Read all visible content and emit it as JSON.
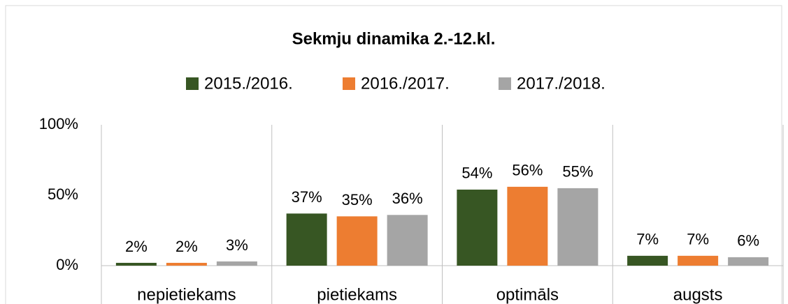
{
  "chart_data": {
    "type": "bar",
    "title": "Sekmju dinamika 2.-12.kl.",
    "categories": [
      "nepietiekams",
      "pietiekams",
      "optimāls",
      "augsts"
    ],
    "series": [
      {
        "name": "2015./2016.",
        "color": "#375623",
        "values": [
          2,
          37,
          54,
          7
        ],
        "value_labels": [
          "2%",
          "37%",
          "54%",
          "7%"
        ]
      },
      {
        "name": "2016./2017.",
        "color": "#ed7d31",
        "values": [
          2,
          35,
          56,
          7
        ],
        "value_labels": [
          "2%",
          "35%",
          "56%",
          "7%"
        ]
      },
      {
        "name": "2017./2018.",
        "color": "#a5a5a5",
        "values": [
          3,
          36,
          55,
          6
        ],
        "value_labels": [
          "3%",
          "36%",
          "55%",
          "6%"
        ]
      }
    ],
    "ylim": [
      0,
      100
    ],
    "yticks": [
      {
        "value": 0,
        "label": "0%"
      },
      {
        "value": 50,
        "label": "50%"
      },
      {
        "value": 100,
        "label": "100%"
      }
    ],
    "legend": "top"
  }
}
